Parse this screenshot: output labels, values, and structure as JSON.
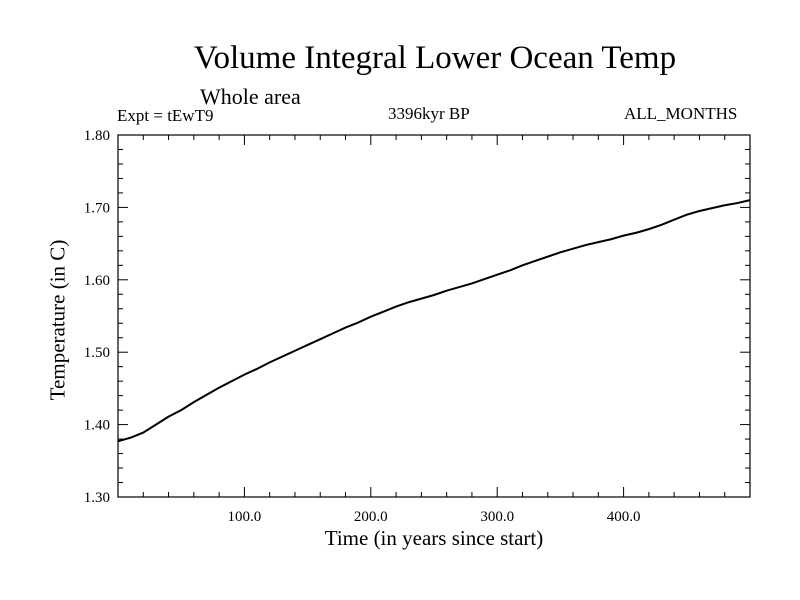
{
  "chart_data": {
    "type": "line",
    "title": "Volume Integral Lower Ocean Temp",
    "subtitle": "Whole area",
    "experiment": "Expt = tEwT9",
    "date_label": "3396kyr BP",
    "period_label": "ALL_MONTHS",
    "xlabel": "Time (in years since start)",
    "ylabel": "Temperature (in C)",
    "xlim": [
      0,
      500
    ],
    "ylim": [
      1.3,
      1.8
    ],
    "x_ticks": [
      100,
      200,
      300,
      400
    ],
    "x_tick_labels": [
      "100.0",
      "200.0",
      "300.0",
      "400.0"
    ],
    "y_ticks": [
      1.3,
      1.4,
      1.5,
      1.6,
      1.7,
      1.8
    ],
    "y_tick_labels": [
      "1.30",
      "1.40",
      "1.50",
      "1.60",
      "1.70",
      "1.80"
    ],
    "series": [
      {
        "name": "Volume Integral Lower Ocean Temp",
        "color": "#000000",
        "x": [
          0,
          10,
          20,
          30,
          40,
          50,
          60,
          70,
          80,
          90,
          100,
          110,
          120,
          130,
          140,
          150,
          160,
          170,
          180,
          190,
          200,
          210,
          220,
          230,
          240,
          250,
          260,
          270,
          280,
          290,
          300,
          310,
          320,
          330,
          340,
          350,
          360,
          370,
          380,
          390,
          400,
          410,
          420,
          430,
          440,
          450,
          460,
          470,
          480,
          490,
          500
        ],
        "values": [
          1.377,
          1.382,
          1.389,
          1.4,
          1.411,
          1.42,
          1.431,
          1.441,
          1.451,
          1.46,
          1.469,
          1.477,
          1.486,
          1.494,
          1.502,
          1.51,
          1.518,
          1.526,
          1.534,
          1.541,
          1.549,
          1.556,
          1.563,
          1.569,
          1.574,
          1.579,
          1.585,
          1.59,
          1.595,
          1.601,
          1.607,
          1.613,
          1.62,
          1.626,
          1.632,
          1.638,
          1.643,
          1.648,
          1.652,
          1.656,
          1.661,
          1.665,
          1.67,
          1.676,
          1.683,
          1.69,
          1.695,
          1.699,
          1.703,
          1.706,
          1.71
        ]
      }
    ]
  }
}
